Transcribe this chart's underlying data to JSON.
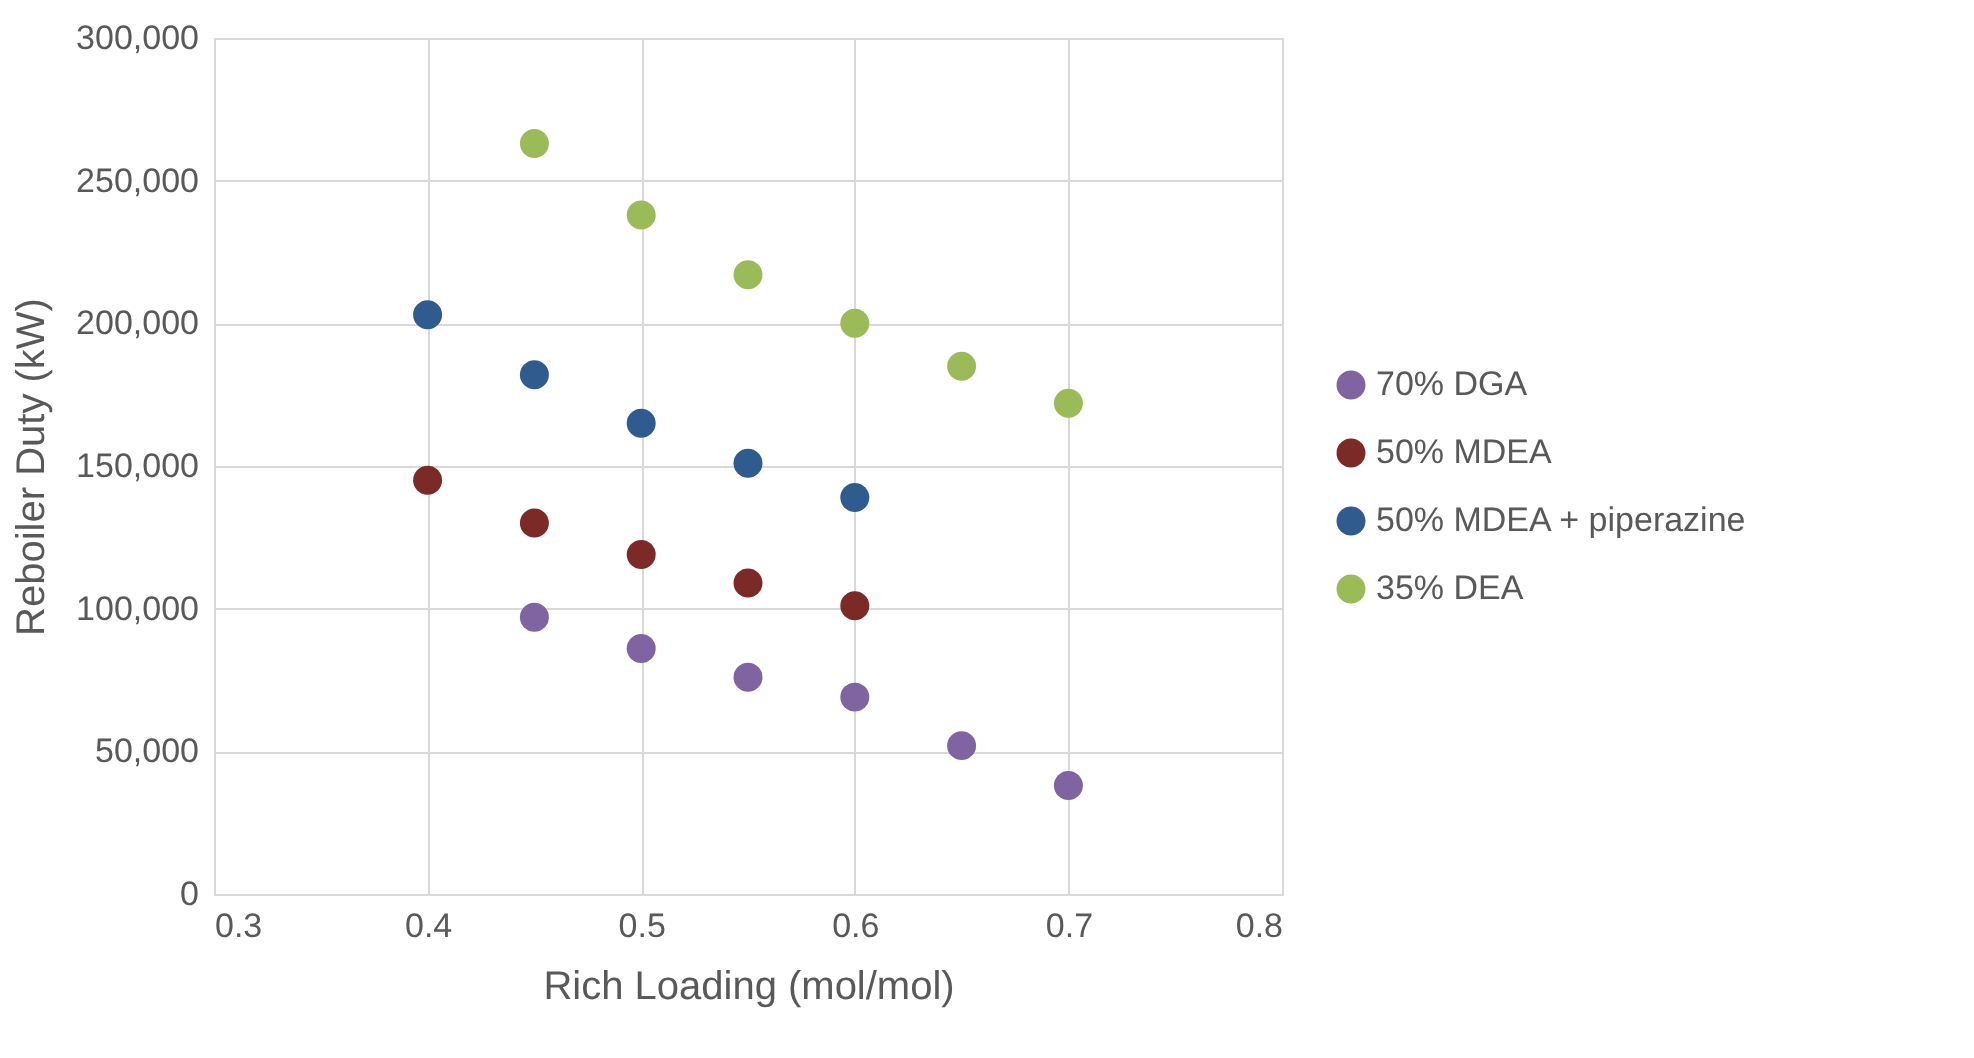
{
  "chart_data": {
    "type": "scatter",
    "xlabel": "Rich Loading (mol/mol)",
    "ylabel": "Reboiler Duty (kW)",
    "xlim": [
      0.3,
      0.8
    ],
    "xticks": [
      0.3,
      0.4,
      0.5,
      0.6,
      0.7,
      0.8
    ],
    "ylim": [
      0,
      300000
    ],
    "yticks": [
      {
        "value": 0,
        "label": "0"
      },
      {
        "value": 50000,
        "label": "50,000"
      },
      {
        "value": 100000,
        "label": "100,000"
      },
      {
        "value": 150000,
        "label": "150,000"
      },
      {
        "value": 200000,
        "label": "200,000"
      },
      {
        "value": 250000,
        "label": "250,000"
      },
      {
        "value": 300000,
        "label": "300,000"
      }
    ],
    "grid": true,
    "legend": "right",
    "marker": "circle",
    "series": [
      {
        "name": "70% DGA",
        "color": "#8064a2",
        "x": [
          0.45,
          0.5,
          0.55,
          0.6,
          0.65,
          0.7
        ],
        "values": [
          97000,
          86000,
          76000,
          69000,
          52000,
          38000
        ]
      },
      {
        "name": "50% MDEA",
        "color": "#7b2a27",
        "x": [
          0.4,
          0.45,
          0.5,
          0.55,
          0.6
        ],
        "values": [
          145000,
          130000,
          119000,
          109000,
          101000
        ]
      },
      {
        "name": "50% MDEA + piperazine",
        "color": "#2f5b8f",
        "x": [
          0.4,
          0.45,
          0.5,
          0.55,
          0.6
        ],
        "values": [
          203000,
          182000,
          165000,
          151000,
          139000
        ]
      },
      {
        "name": "35% DEA",
        "color": "#9bbb59",
        "x": [
          0.45,
          0.5,
          0.55,
          0.6,
          0.65,
          0.7
        ],
        "values": [
          263000,
          238000,
          217000,
          200000,
          185000,
          172000
        ]
      }
    ]
  }
}
